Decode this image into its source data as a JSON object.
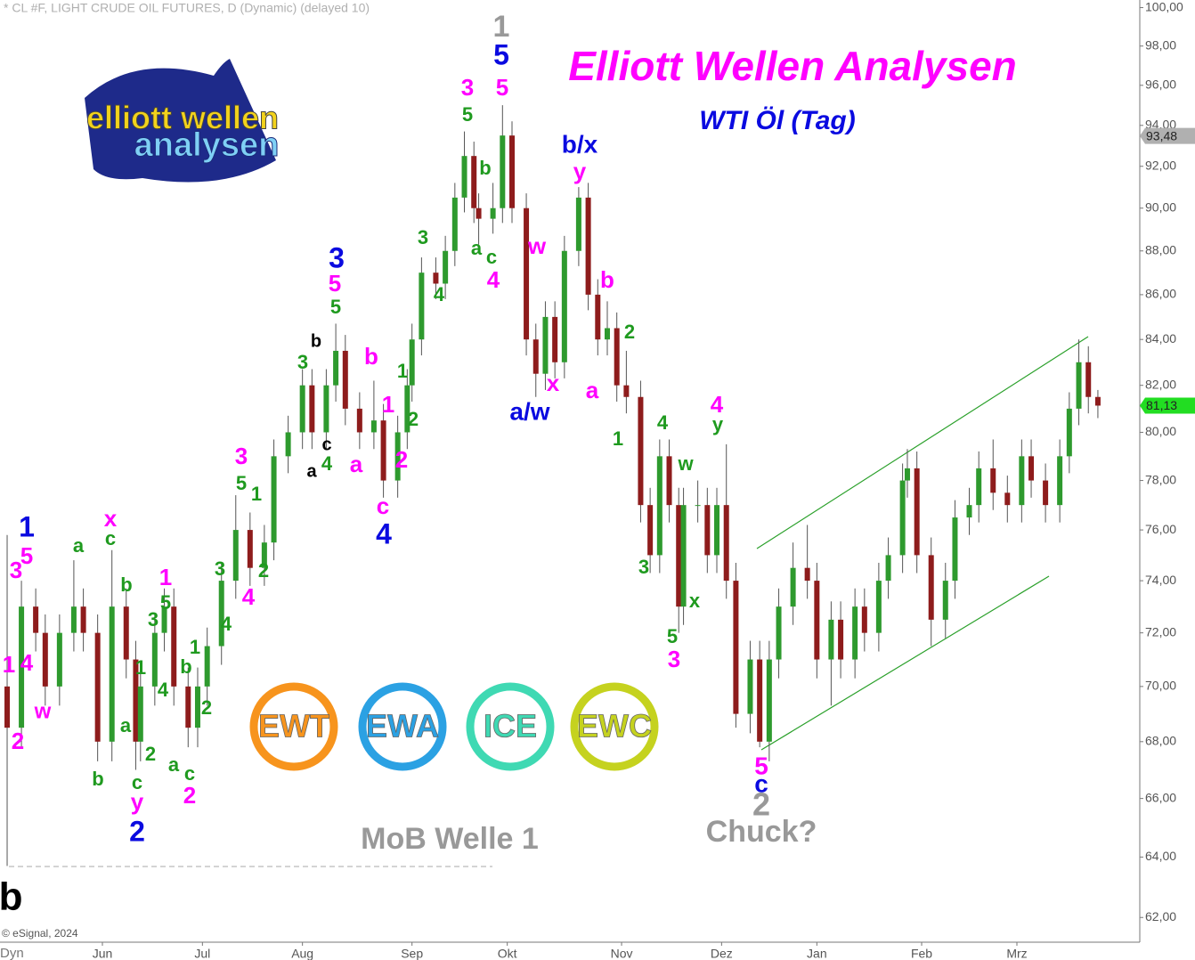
{
  "chart_data": {
    "type": "candlestick",
    "header": "* CL #F, LIGHT CRUDE OIL FUTURES, D (Dynamic) (delayed 10)",
    "title": "Elliott Wellen Analysen",
    "subtitle": "WTI Öl (Tag)",
    "copyright": "© eSignal, 2024",
    "corner_label": "Dyn",
    "logo": [
      "elliott wellen",
      "analysen"
    ],
    "badges": [
      {
        "text": "EWT",
        "color": "#f7941d"
      },
      {
        "text": "EWA",
        "color": "#2ba1e3"
      },
      {
        "text": "ICE",
        "color": "#3fd9b3"
      },
      {
        "text": "EWC",
        "color": "#c5d21f"
      }
    ],
    "up_color": "#2e9a2e",
    "down_color": "#8e1c1c",
    "wick_color": "#555555",
    "log_scale": true,
    "ylim": [
      61.2,
      100.4
    ],
    "yticks": [
      {
        "value": 62,
        "label": "62,00"
      },
      {
        "value": 64,
        "label": "64,00"
      },
      {
        "value": 66,
        "label": "66,00"
      },
      {
        "value": 68,
        "label": "68,00"
      },
      {
        "value": 70,
        "label": "70,00"
      },
      {
        "value": 72,
        "label": "72,00"
      },
      {
        "value": 74,
        "label": "74,00"
      },
      {
        "value": 76,
        "label": "76,00"
      },
      {
        "value": 78,
        "label": "78,00"
      },
      {
        "value": 80,
        "label": "80,00"
      },
      {
        "value": 82,
        "label": "82,00"
      },
      {
        "value": 84,
        "label": "84,00"
      },
      {
        "value": 86,
        "label": "86,00"
      },
      {
        "value": 88,
        "label": "88,00"
      },
      {
        "value": 90,
        "label": "90,00"
      },
      {
        "value": 92,
        "label": "92,00"
      },
      {
        "value": 94,
        "label": "94,00"
      },
      {
        "value": 96,
        "label": "96,00"
      },
      {
        "value": 98,
        "label": "98,00"
      },
      {
        "value": 100,
        "label": "100,00"
      }
    ],
    "xlim": [
      -1.5,
      237.8
    ],
    "xticks": [
      {
        "value": 20,
        "label": "Jun"
      },
      {
        "value": 41,
        "label": "Jul"
      },
      {
        "value": 62,
        "label": "Aug"
      },
      {
        "value": 85,
        "label": "Sep"
      },
      {
        "value": 105,
        "label": "Okt"
      },
      {
        "value": 129,
        "label": "Nov"
      },
      {
        "value": 150,
        "label": "Dez"
      },
      {
        "value": 170,
        "label": "Jan"
      },
      {
        "value": 192,
        "label": "Feb"
      },
      {
        "value": 212,
        "label": "Mrz"
      }
    ],
    "price_markers": [
      {
        "value": 93.48,
        "label": "93,48",
        "color": "#b0b0b0"
      },
      {
        "value": 81.13,
        "label": "81,13",
        "color": "#22dd22"
      }
    ],
    "x": [
      0,
      3,
      6,
      8,
      11,
      14,
      16,
      19,
      22,
      25,
      27,
      28,
      31,
      33,
      35,
      38,
      40,
      42,
      45,
      48,
      51,
      54,
      56,
      59,
      62,
      64,
      67,
      69,
      71,
      74,
      77,
      79,
      82,
      84,
      85,
      87,
      90,
      92,
      94,
      96,
      98,
      99,
      102,
      104,
      106,
      109,
      111,
      113,
      115,
      117,
      120,
      122,
      124,
      126,
      128,
      130,
      133,
      135,
      137,
      139,
      141,
      142,
      145,
      147,
      149,
      151,
      153,
      156,
      158,
      160,
      162,
      165,
      168,
      170,
      173,
      175,
      178,
      180,
      183,
      185,
      188,
      189,
      191,
      194,
      197,
      199,
      202,
      204,
      207,
      210,
      213,
      215,
      218,
      221,
      223,
      225,
      227,
      229
    ],
    "open": [
      70,
      68.5,
      73,
      72,
      70,
      72,
      73,
      72,
      68,
      73,
      71,
      68,
      70,
      72,
      73,
      70,
      68.5,
      70,
      71.5,
      74,
      76,
      74.5,
      75.5,
      79,
      80,
      82,
      80,
      82,
      83.5,
      81,
      80,
      80.5,
      78,
      80,
      82,
      84,
      87,
      86.5,
      88,
      90.5,
      92.5,
      90,
      89.5,
      90,
      93.5,
      90,
      84,
      82.5,
      85,
      83,
      88,
      90.5,
      86,
      84,
      84.5,
      82,
      81.5,
      77,
      75,
      79,
      77,
      73,
      77,
      77,
      75,
      77,
      74,
      69,
      71,
      68,
      71,
      73,
      74.5,
      74,
      71,
      72.5,
      71,
      73,
      72,
      74,
      75,
      78,
      78.5,
      75,
      72.5,
      74,
      76.5,
      77,
      78.5,
      77.5,
      77,
      79,
      78,
      77,
      79,
      81,
      83,
      81.5
    ],
    "high": [
      75.8,
      74,
      73.7,
      72.7,
      72.7,
      74.8,
      73.7,
      72.7,
      75.2,
      73.7,
      71.7,
      70.7,
      72.7,
      73.7,
      73.7,
      70.7,
      70.7,
      72.2,
      74.7,
      77.4,
      76.7,
      76.2,
      79.7,
      80.7,
      82.7,
      82.7,
      82.7,
      84.7,
      84.2,
      81.7,
      82.2,
      81.2,
      80.7,
      82.7,
      84.7,
      87.7,
      87.7,
      88.7,
      91.2,
      93.7,
      93.2,
      90.7,
      91.2,
      95,
      94.2,
      90.7,
      84.7,
      85.7,
      85.7,
      88.7,
      91,
      91.2,
      86.7,
      85.7,
      85.2,
      83.5,
      82.2,
      77.7,
      79.7,
      79.7,
      77.7,
      77.7,
      78,
      77.7,
      77.7,
      79.5,
      74.7,
      71.7,
      71.7,
      71.7,
      73.7,
      75.5,
      76.2,
      74.7,
      73.2,
      73.2,
      73.7,
      73.7,
      74.7,
      75.7,
      78.7,
      79.3,
      79.2,
      75.7,
      74.7,
      77.2,
      77.7,
      79.2,
      79.7,
      78.2,
      79.7,
      79.7,
      78.7,
      79.7,
      81.7,
      84,
      83.7,
      81.8
    ],
    "low": [
      63.7,
      67.8,
      71.3,
      69.3,
      69.3,
      71.3,
      71.3,
      67.3,
      67.3,
      70.3,
      67,
      67.3,
      69.3,
      71.3,
      69.3,
      67.8,
      67.8,
      69.3,
      70.8,
      73.3,
      73.8,
      73.8,
      74.8,
      78.3,
      79.3,
      79.3,
      79.3,
      81.3,
      80.3,
      79.3,
      79.3,
      77.3,
      77.3,
      79.3,
      81.3,
      83.3,
      85.8,
      85.8,
      87.3,
      89.8,
      89.3,
      88.3,
      88.8,
      89.3,
      89.3,
      83.3,
      81.5,
      81.8,
      82.3,
      82.3,
      87.3,
      85.3,
      83.3,
      83.3,
      81.3,
      80.8,
      76.3,
      74.3,
      74.3,
      76.3,
      72,
      72.3,
      76.3,
      74.3,
      74.3,
      73.3,
      68.5,
      68.3,
      67.8,
      67.3,
      70.3,
      72.3,
      73.3,
      70.3,
      69.3,
      70.3,
      70.3,
      71.3,
      71.3,
      73.3,
      74.3,
      77.3,
      74.3,
      71.5,
      71.8,
      73.3,
      75.8,
      76.3,
      76.8,
      76.3,
      76.3,
      77.3,
      76.3,
      76.3,
      78.3,
      80.3,
      80.8,
      80.6
    ],
    "close": [
      68.5,
      73,
      72,
      70,
      72,
      73,
      72,
      68,
      73,
      71,
      68,
      70,
      72,
      73,
      70,
      68.5,
      70,
      71.5,
      74,
      76,
      74.5,
      75.5,
      79,
      80,
      82,
      80,
      82,
      83.5,
      81,
      80,
      80.5,
      78,
      80,
      82,
      84,
      87,
      86.5,
      88,
      90.5,
      92.5,
      90,
      89.5,
      90,
      93.5,
      90,
      84,
      82.5,
      85,
      83,
      88,
      90.5,
      86,
      84,
      84.5,
      82,
      81.5,
      77,
      75,
      79,
      77,
      73,
      77,
      77,
      75,
      77,
      74,
      69,
      71,
      68,
      71,
      73,
      74.5,
      74,
      71,
      72.5,
      71,
      73,
      72,
      74,
      75,
      78,
      78.5,
      75,
      72.5,
      74,
      76.5,
      77,
      78.5,
      77.5,
      77,
      79,
      78,
      77,
      79,
      81,
      83,
      81.5,
      81.13
    ],
    "annotations": [
      {
        "text": "1",
        "color": "#0a0ae0"
      },
      {
        "text": "5",
        "color": "#ff00ff"
      },
      {
        "text": "3",
        "color": "#ff00ff"
      },
      {
        "text": "1",
        "color": "#ff00ff"
      },
      {
        "text": "4",
        "color": "#ff00ff"
      },
      {
        "text": "w",
        "color": "#ff00ff"
      },
      {
        "text": "2",
        "color": "#ff00ff"
      },
      {
        "text": "a",
        "color": "#1f9a1f"
      },
      {
        "text": "x",
        "color": "#ff00ff"
      },
      {
        "text": "c",
        "color": "#1f9a1f"
      },
      {
        "text": "b",
        "color": "#1f9a1f"
      },
      {
        "text": "1",
        "color": "#ff00ff"
      },
      {
        "text": "5",
        "color": "#1f9a1f"
      },
      {
        "text": "3",
        "color": "#1f9a1f"
      },
      {
        "text": "1",
        "color": "#1f9a1f"
      },
      {
        "text": "4",
        "color": "#1f9a1f"
      },
      {
        "text": "a",
        "color": "#1f9a1f"
      },
      {
        "text": "2",
        "color": "#1f9a1f"
      },
      {
        "text": "b",
        "color": "#1f9a1f"
      },
      {
        "text": "c",
        "color": "#1f9a1f"
      },
      {
        "text": "y",
        "color": "#ff00ff"
      },
      {
        "text": "2",
        "color": "#0a0ae0"
      },
      {
        "text": "a",
        "color": "#1f9a1f"
      },
      {
        "text": "c",
        "color": "#1f9a1f"
      },
      {
        "text": "2",
        "color": "#ff00ff"
      },
      {
        "text": "1",
        "color": "#1f9a1f"
      },
      {
        "text": "b",
        "color": "#1f9a1f"
      },
      {
        "text": "2",
        "color": "#1f9a1f"
      },
      {
        "text": "4",
        "color": "#1f9a1f"
      },
      {
        "text": "3",
        "color": "#1f9a1f"
      },
      {
        "text": "4",
        "color": "#ff00ff"
      },
      {
        "text": "2",
        "color": "#1f9a1f"
      },
      {
        "text": "1",
        "color": "#1f9a1f"
      },
      {
        "text": "5",
        "color": "#1f9a1f"
      },
      {
        "text": "3",
        "color": "#ff00ff"
      },
      {
        "text": "3",
        "color": "#1f9a1f"
      },
      {
        "text": "b",
        "color": "#000000"
      },
      {
        "text": "c",
        "color": "#000000"
      },
      {
        "text": "a",
        "color": "#000000"
      },
      {
        "text": "4",
        "color": "#1f9a1f"
      },
      {
        "text": "3",
        "color": "#0a0ae0"
      },
      {
        "text": "5",
        "color": "#ff00ff"
      },
      {
        "text": "5",
        "color": "#1f9a1f"
      },
      {
        "text": "b",
        "color": "#ff00ff"
      },
      {
        "text": "1",
        "color": "#1f9a1f"
      },
      {
        "text": "1",
        "color": "#ff00ff"
      },
      {
        "text": "2",
        "color": "#1f9a1f"
      },
      {
        "text": "2",
        "color": "#ff00ff"
      },
      {
        "text": "a",
        "color": "#ff00ff"
      },
      {
        "text": "c",
        "color": "#ff00ff"
      },
      {
        "text": "4",
        "color": "#0a0ae0"
      },
      {
        "text": "3",
        "color": "#1f9a1f"
      },
      {
        "text": "4",
        "color": "#1f9a1f"
      },
      {
        "text": "3",
        "color": "#ff00ff"
      },
      {
        "text": "5",
        "color": "#1f9a1f"
      },
      {
        "text": "b",
        "color": "#1f9a1f"
      },
      {
        "text": "a",
        "color": "#1f9a1f"
      },
      {
        "text": "c",
        "color": "#1f9a1f"
      },
      {
        "text": "4",
        "color": "#ff00ff"
      },
      {
        "text": "5",
        "color": "#ff00ff"
      },
      {
        "text": "5",
        "color": "#0a0ae0"
      },
      {
        "text": "1",
        "color": "#999999"
      },
      {
        "text": "w",
        "color": "#ff00ff"
      },
      {
        "text": "x",
        "color": "#ff00ff"
      },
      {
        "text": "a/w",
        "color": "#0a0ae0"
      },
      {
        "text": "b/x",
        "color": "#0a0ae0"
      },
      {
        "text": "y",
        "color": "#ff00ff"
      },
      {
        "text": "b",
        "color": "#ff00ff"
      },
      {
        "text": "a",
        "color": "#ff00ff"
      },
      {
        "text": "2",
        "color": "#1f9a1f"
      },
      {
        "text": "1",
        "color": "#1f9a1f"
      },
      {
        "text": "4",
        "color": "#1f9a1f"
      },
      {
        "text": "3",
        "color": "#1f9a1f"
      },
      {
        "text": "w",
        "color": "#1f9a1f"
      },
      {
        "text": "5",
        "color": "#1f9a1f"
      },
      {
        "text": "3",
        "color": "#ff00ff"
      },
      {
        "text": "x",
        "color": "#1f9a1f"
      },
      {
        "text": "4",
        "color": "#ff00ff"
      },
      {
        "text": "y",
        "color": "#1f9a1f"
      },
      {
        "text": "5",
        "color": "#ff00ff"
      },
      {
        "text": "c",
        "color": "#0a0ae0"
      },
      {
        "text": "2",
        "color": "#999999"
      },
      {
        "text": "Chuck?",
        "color": "#999999"
      },
      {
        "text": "MoB Welle 1",
        "color": "#999999"
      },
      {
        "text": "b",
        "color": "#000000"
      }
    ]
  }
}
